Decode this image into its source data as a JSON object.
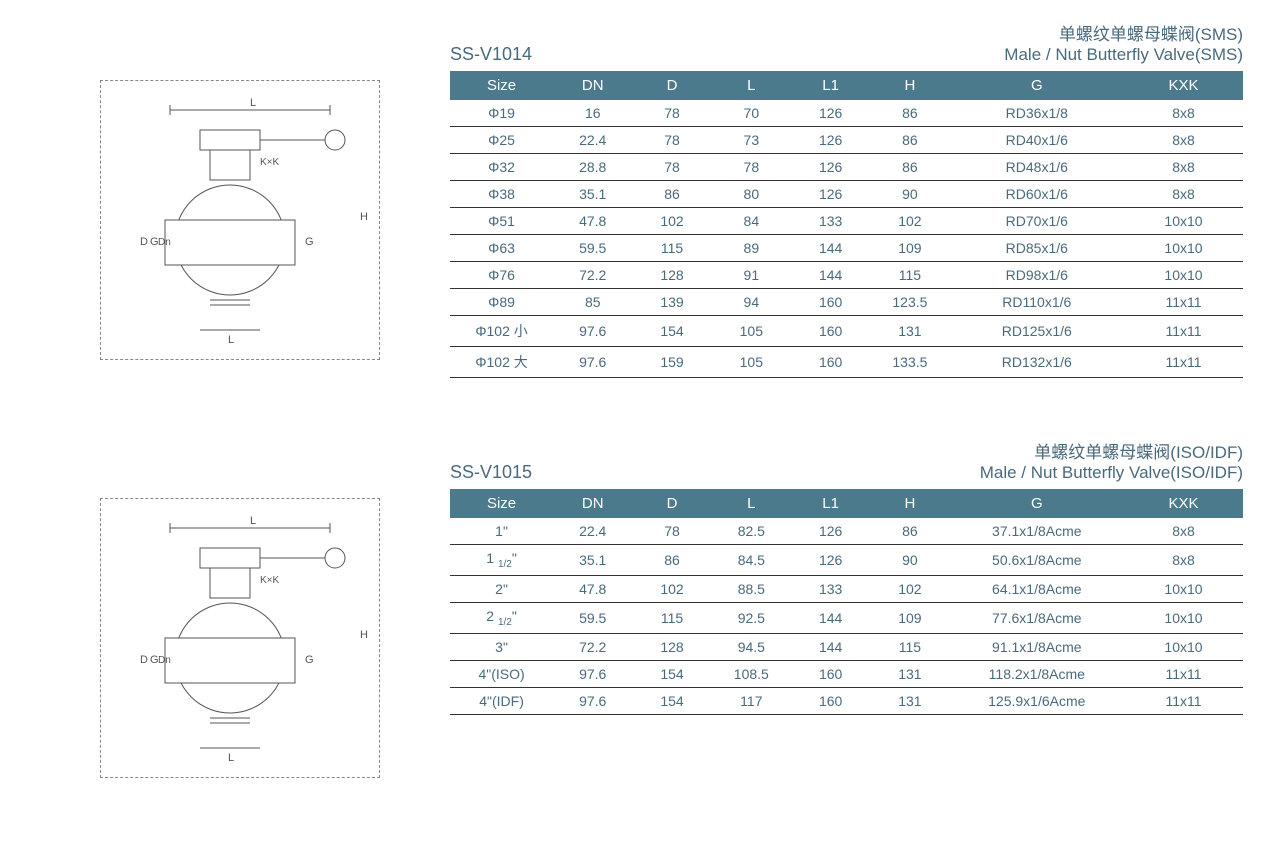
{
  "colors": {
    "header_bg": "#4a7a8c",
    "header_fg": "#ffffff",
    "text": "#4a6a7c",
    "row_border": "#333333",
    "page_bg": "#ffffff"
  },
  "columns": [
    "Size",
    "DN",
    "D",
    "L",
    "L1",
    "H",
    "G",
    "KXK"
  ],
  "section1": {
    "model": "SS-V1014",
    "title_cn": "单螺纹单螺母蝶阀(SMS)",
    "title_en": "Male / Nut Butterfly Valve(SMS)",
    "diagram_labels": [
      "L",
      "K×K",
      "H",
      "G",
      "Dn",
      "D",
      "L",
      "G"
    ],
    "rows": [
      [
        "Φ19",
        "16",
        "78",
        "70",
        "126",
        "86",
        "RD36x1/8",
        "8x8"
      ],
      [
        "Φ25",
        "22.4",
        "78",
        "73",
        "126",
        "86",
        "RD40x1/6",
        "8x8"
      ],
      [
        "Φ32",
        "28.8",
        "78",
        "78",
        "126",
        "86",
        "RD48x1/6",
        "8x8"
      ],
      [
        "Φ38",
        "35.1",
        "86",
        "80",
        "126",
        "90",
        "RD60x1/6",
        "8x8"
      ],
      [
        "Φ51",
        "47.8",
        "102",
        "84",
        "133",
        "102",
        "RD70x1/6",
        "10x10"
      ],
      [
        "Φ63",
        "59.5",
        "115",
        "89",
        "144",
        "109",
        "RD85x1/6",
        "10x10"
      ],
      [
        "Φ76",
        "72.2",
        "128",
        "91",
        "144",
        "115",
        "RD98x1/6",
        "10x10"
      ],
      [
        "Φ89",
        "85",
        "139",
        "94",
        "160",
        "123.5",
        "RD110x1/6",
        "11x11"
      ],
      [
        "Φ102 小",
        "97.6",
        "154",
        "105",
        "160",
        "131",
        "RD125x1/6",
        "11x11"
      ],
      [
        "Φ102 大",
        "97.6",
        "159",
        "105",
        "160",
        "133.5",
        "RD132x1/6",
        "11x11"
      ]
    ]
  },
  "section2": {
    "model": "SS-V1015",
    "title_cn": "单螺纹单螺母蝶阀(ISO/IDF)",
    "title_en": "Male / Nut Butterfly Valve(ISO/IDF)",
    "diagram_labels": [
      "L",
      "K×K",
      "H",
      "G",
      "Dn",
      "D",
      "L",
      "G"
    ],
    "rows": [
      [
        "1\"",
        "22.4",
        "78",
        "82.5",
        "126",
        "86",
        "37.1x1/8Acme",
        "8x8"
      ],
      [
        "1 1/2\"",
        "35.1",
        "86",
        "84.5",
        "126",
        "90",
        "50.6x1/8Acme",
        "8x8"
      ],
      [
        "2\"",
        "47.8",
        "102",
        "88.5",
        "133",
        "102",
        "64.1x1/8Acme",
        "10x10"
      ],
      [
        "2 1/2\"",
        "59.5",
        "115",
        "92.5",
        "144",
        "109",
        "77.6x1/8Acme",
        "10x10"
      ],
      [
        "3\"",
        "72.2",
        "128",
        "94.5",
        "144",
        "115",
        "91.1x1/8Acme",
        "10x10"
      ],
      [
        "4\"(ISO)",
        "97.6",
        "154",
        "108.5",
        "160",
        "131",
        "118.2x1/8Acme",
        "11x11"
      ],
      [
        "4\"(IDF)",
        "97.6",
        "154",
        "117",
        "160",
        "131",
        "125.9x1/6Acme",
        "11x11"
      ]
    ]
  }
}
